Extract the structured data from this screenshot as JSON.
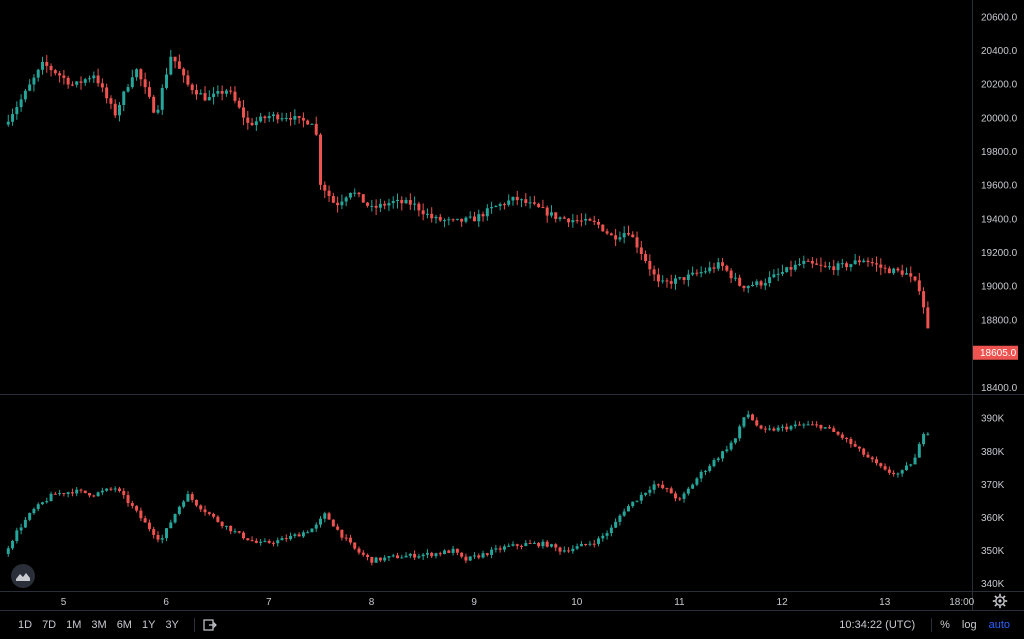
{
  "colors": {
    "up": "#26a69a",
    "down": "#ef5350",
    "background": "#000000",
    "grid": "#2a2e39",
    "text": "#c8cad0",
    "accent": "#2962ff"
  },
  "toolbar": {
    "timeframes": [
      "1D",
      "7D",
      "1M",
      "3M",
      "6M",
      "1Y",
      "3Y"
    ],
    "compare_icon": "compare-icon",
    "time": "10:34:22 (UTC)",
    "percent_label": "%",
    "log_label": "log",
    "auto_label": "auto",
    "settings_icon": "gear-icon",
    "logo_icon": "tradingview-logo-icon"
  },
  "chart_data": [
    {
      "type": "candlestick",
      "pane": "price",
      "yticks": [
        18400,
        18600,
        18800,
        19000,
        19200,
        19400,
        19600,
        19800,
        20000,
        20200,
        20400,
        20600
      ],
      "ytick_labels": [
        "18400.0",
        "18600.0",
        "18800.0",
        "19000.0",
        "19200.0",
        "19400.0",
        "19600.0",
        "19800.0",
        "20000.0",
        "20200.0",
        "20400.0",
        "20600.0"
      ],
      "ylim": [
        18360,
        20700
      ],
      "last_price": 18605,
      "last_price_label": "18605.0",
      "x_ticks": [
        5,
        6,
        7,
        8,
        9,
        10,
        11,
        12,
        13
      ],
      "x_tick_labels": [
        "5",
        "6",
        "7",
        "8",
        "9",
        "10",
        "11",
        "12",
        "13"
      ],
      "x_extra_label": "18:00",
      "x_extra_position": 13.75,
      "xlim": [
        4.42,
        13.85
      ],
      "x_end": 13.46,
      "close_path": [
        [
          4.42,
          19960
        ],
        [
          4.6,
          20120
        ],
        [
          4.8,
          20320
        ],
        [
          4.95,
          20260
        ],
        [
          5.1,
          20190
        ],
        [
          5.3,
          20260
        ],
        [
          5.5,
          20020
        ],
        [
          5.7,
          20300
        ],
        [
          5.9,
          20020
        ],
        [
          6.05,
          20380
        ],
        [
          6.2,
          20200
        ],
        [
          6.4,
          20110
        ],
        [
          6.6,
          20170
        ],
        [
          6.8,
          19960
        ],
        [
          7.0,
          20010
        ],
        [
          7.2,
          20010
        ],
        [
          7.3,
          19980
        ],
        [
          7.45,
          19980
        ],
        [
          7.5,
          19620
        ],
        [
          7.65,
          19480
        ],
        [
          7.8,
          19570
        ],
        [
          8.0,
          19460
        ],
        [
          8.2,
          19500
        ],
        [
          8.4,
          19490
        ],
        [
          8.6,
          19400
        ],
        [
          8.8,
          19380
        ],
        [
          9.0,
          19400
        ],
        [
          9.2,
          19470
        ],
        [
          9.4,
          19520
        ],
        [
          9.6,
          19470
        ],
        [
          9.8,
          19410
        ],
        [
          10.0,
          19390
        ],
        [
          10.2,
          19370
        ],
        [
          10.35,
          19290
        ],
        [
          10.5,
          19330
        ],
        [
          10.65,
          19180
        ],
        [
          10.8,
          19010
        ],
        [
          11.0,
          19040
        ],
        [
          11.2,
          19080
        ],
        [
          11.4,
          19130
        ],
        [
          11.6,
          19000
        ],
        [
          11.8,
          19020
        ],
        [
          12.0,
          19080
        ],
        [
          12.2,
          19140
        ],
        [
          12.4,
          19110
        ],
        [
          12.6,
          19120
        ],
        [
          12.8,
          19160
        ],
        [
          13.0,
          19100
        ],
        [
          13.2,
          19080
        ],
        [
          13.35,
          18980
        ],
        [
          13.46,
          18605
        ]
      ]
    },
    {
      "type": "candlestick",
      "pane": "indicator",
      "yticks": [
        340000,
        350000,
        360000,
        370000,
        380000,
        390000
      ],
      "ytick_labels": [
        "340K",
        "350K",
        "360K",
        "370K",
        "380K",
        "390K"
      ],
      "ylim": [
        337500,
        397000
      ],
      "close_path": [
        [
          4.42,
          349000
        ],
        [
          4.55,
          356000
        ],
        [
          4.7,
          362000
        ],
        [
          4.9,
          367000
        ],
        [
          5.1,
          368000
        ],
        [
          5.3,
          367000
        ],
        [
          5.5,
          369000
        ],
        [
          5.65,
          364000
        ],
        [
          5.8,
          358000
        ],
        [
          5.95,
          353000
        ],
        [
          6.1,
          362000
        ],
        [
          6.2,
          367000
        ],
        [
          6.3,
          364000
        ],
        [
          6.5,
          359000
        ],
        [
          6.7,
          355000
        ],
        [
          6.9,
          352000
        ],
        [
          7.1,
          353000
        ],
        [
          7.3,
          355000
        ],
        [
          7.45,
          357000
        ],
        [
          7.55,
          361000
        ],
        [
          7.7,
          355000
        ],
        [
          7.85,
          350000
        ],
        [
          8.0,
          347000
        ],
        [
          8.2,
          348000
        ],
        [
          8.4,
          348500
        ],
        [
          8.6,
          349000
        ],
        [
          8.8,
          350000
        ],
        [
          8.9,
          347000
        ],
        [
          9.1,
          349000
        ],
        [
          9.3,
          351000
        ],
        [
          9.5,
          352000
        ],
        [
          9.7,
          352000
        ],
        [
          9.85,
          350000
        ],
        [
          10.0,
          351000
        ],
        [
          10.2,
          353000
        ],
        [
          10.35,
          357000
        ],
        [
          10.45,
          362000
        ],
        [
          10.6,
          366000
        ],
        [
          10.75,
          370000
        ],
        [
          10.9,
          368000
        ],
        [
          11.0,
          365000
        ],
        [
          11.2,
          373000
        ],
        [
          11.4,
          379000
        ],
        [
          11.55,
          384000
        ],
        [
          11.65,
          392000
        ],
        [
          11.8,
          386000
        ],
        [
          12.0,
          387000
        ],
        [
          12.2,
          388000
        ],
        [
          12.4,
          387500
        ],
        [
          12.6,
          384000
        ],
        [
          12.8,
          379000
        ],
        [
          13.0,
          374000
        ],
        [
          13.15,
          373000
        ],
        [
          13.3,
          378000
        ],
        [
          13.4,
          388000
        ],
        [
          13.46,
          382000
        ]
      ]
    }
  ]
}
